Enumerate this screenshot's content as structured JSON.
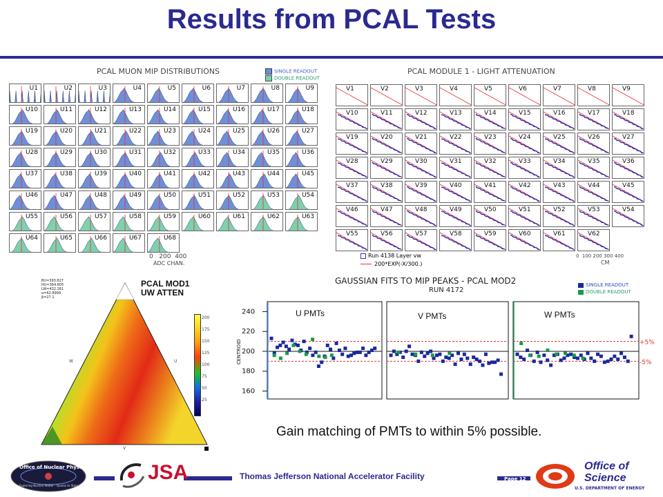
{
  "slide": {
    "title": "Results from PCAL Tests",
    "conclusion": "Gain matching of PMTs to within 5% possible.",
    "footer_org": "Thomas Jefferson National Accelerator Facility",
    "page_label": "Page 12",
    "nuclear_logo": "Office of Nuclear Physics",
    "nuclear_tag": "Exploring Nuclear Matter - Quarks to Stars",
    "jsa_logo": "JSA",
    "doe_line1": "Office of",
    "doe_line2": "Science",
    "doe_line3": "U.S. DEPARTMENT OF ENERGY"
  },
  "mip": {
    "title": "PCAL MUON MIP DISTRIBUTIONS",
    "legend_single": "SINGLE READOUT",
    "legend_double": "DOUBLE READOUT",
    "color_single": "#6f8fd8",
    "color_double": "#7fd0ae",
    "labels": [
      "U1",
      "U2",
      "U3",
      "U4",
      "U5",
      "U6",
      "U7",
      "U8",
      "U9",
      "U10",
      "U11",
      "U12",
      "U13",
      "U14",
      "U15",
      "U16",
      "U17",
      "U18",
      "U19",
      "U20",
      "U21",
      "U22",
      "U23",
      "U24",
      "U25",
      "U26",
      "U27",
      "U28",
      "U29",
      "U30",
      "U31",
      "U32",
      "U33",
      "U34",
      "U35",
      "U36",
      "U37",
      "U38",
      "U39",
      "U40",
      "U41",
      "U42",
      "U43",
      "U44",
      "U45",
      "U46",
      "U47",
      "U48",
      "U49",
      "U50",
      "U51",
      "U52",
      "U53",
      "U54",
      "U55",
      "U56",
      "U57",
      "U58",
      "U59",
      "U60",
      "U61",
      "U62",
      "U63",
      "U64",
      "U65",
      "U66",
      "U67",
      "U68"
    ],
    "double_start": 53,
    "axis_ticks": "0   200  400",
    "axis_label": "ADC CHAN."
  },
  "atten": {
    "title": "PCAL MODULE 1  -  LIGHT ATTENUATION",
    "labels": [
      "V1",
      "V2",
      "V3",
      "V4",
      "V5",
      "V6",
      "V7",
      "V8",
      "V9",
      "V10",
      "V11",
      "V12",
      "V13",
      "V14",
      "V15",
      "V16",
      "V17",
      "V18",
      "V19",
      "V20",
      "V21",
      "V22",
      "V23",
      "V24",
      "V25",
      "V26",
      "V27",
      "V28",
      "V29",
      "V30",
      "V31",
      "V32",
      "V33",
      "V34",
      "V35",
      "V36",
      "V37",
      "V38",
      "V39",
      "V40",
      "V41",
      "V42",
      "V43",
      "V44",
      "V45",
      "V46",
      "V47",
      "V48",
      "V49",
      "V50",
      "V51",
      "V52",
      "V53",
      "V54",
      "V55",
      "V56",
      "V57",
      "V58",
      "V59",
      "V60",
      "V61",
      "V62"
    ],
    "legend_run": "Run 4138 Layer vw",
    "legend_fit": "200*EXP(-X/300.)",
    "axis_ticks": "0  100 200 300 400",
    "axis_label": "CM"
  },
  "map": {
    "title1": "PCAL MOD1",
    "title2": "UW ATTEN",
    "stats": [
      "BU=393.827",
      "HU=364.805",
      "LW=432.261",
      "α=62.8999",
      "β=27.1"
    ],
    "side_w": "W",
    "side_u": "U",
    "side_v": "V",
    "scale_ticks": [
      "200",
      "175",
      "150",
      "125",
      "100",
      "75",
      "50",
      "25"
    ]
  },
  "gauss": {
    "title": "GAUSSIAN FITS TO MIP PEAKS - PCAL MOD2",
    "run": "RUN 4172",
    "legend_single": "SINGLE READOUT",
    "legend_double": "DOUBLE READOUT",
    "ylabel": "CENTROID",
    "yticks": [
      "240",
      "220",
      "200",
      "180",
      "160"
    ],
    "u_label": "U PMTs",
    "v_label": "V PMTs",
    "w_label": "W PMTs",
    "plus5": "+5%",
    "minus5": "-5%"
  },
  "chart_data": {
    "type": "scatter",
    "title": "GAUSSIAN FITS TO MIP PEAKS - PCAL MOD2",
    "subtitle": "RUN 4172",
    "ylabel": "CENTROID",
    "ylim": [
      152,
      250
    ],
    "reference_lines": [
      200,
      210,
      190
    ],
    "series": [
      {
        "name": "SINGLE READOUT",
        "color": "#1a2a9a",
        "segments": [
          {
            "panel": "U PMTs",
            "values": [
              213,
              198,
              204,
              206,
              209,
              205,
              202,
              211,
              207,
              206,
              201,
              210,
              199,
              203,
              196,
              199,
              185,
              189,
              195,
              206,
              202,
              193,
              208,
              201,
              197,
              203,
              195,
              196,
              198,
              199,
              199,
              203,
              196,
              199,
              201,
              203
            ]
          },
          {
            "panel": "V PMTs",
            "values": [
              196,
              200,
              197,
              199,
              194,
              200,
              205,
              197,
              196,
              190,
              199,
              195,
              198,
              200,
              193,
              196,
              197,
              190,
              194,
              193,
              196,
              187,
              198,
              192,
              197,
              193,
              187,
              194,
              192,
              190,
              186,
              197,
              188,
              189,
              189,
              191,
              177
            ]
          },
          {
            "panel": "W PMTs",
            "values": [
              197,
              194,
              192,
              201,
              196,
              190,
              199,
              189,
              196,
              191,
              186,
              196,
              197,
              191,
              193,
              196,
              197,
              194,
              193,
              196,
              192,
              198,
              193,
              190,
              197,
              195,
              189,
              190,
              192,
              195,
              192,
              198,
              194,
              190,
              215
            ]
          }
        ]
      },
      {
        "name": "DOUBLE READOUT",
        "color": "#1a9a4a",
        "segments": [
          {
            "panel": "U PMTs",
            "values": [
              196,
              193,
              198,
              206,
              200,
              197,
              212,
              195,
              194,
              196
            ]
          },
          {
            "panel": "V PMTs",
            "values": [
              199,
              197,
              196,
              198
            ]
          },
          {
            "panel": "W PMTs",
            "values": [
              208,
              196,
              195,
              201,
              197,
              198,
              196,
              193
            ]
          }
        ]
      }
    ]
  }
}
